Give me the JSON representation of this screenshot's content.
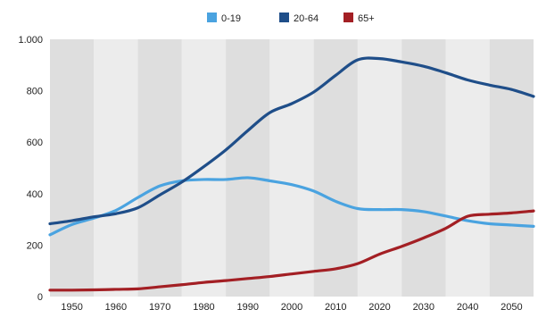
{
  "chart_data": {
    "type": "line",
    "title": "",
    "xlabel": "",
    "ylabel": "",
    "xlim": [
      1945,
      2055
    ],
    "ylim": [
      0,
      1000
    ],
    "x_ticks": [
      1950,
      1960,
      1970,
      1980,
      1990,
      2000,
      2010,
      2020,
      2030,
      2040,
      2050
    ],
    "x_tick_labels": [
      "1950",
      "1960",
      "1970",
      "1980",
      "1990",
      "2000",
      "2010",
      "2020",
      "2030",
      "2040",
      "2050"
    ],
    "y_ticks": [
      0,
      200,
      400,
      600,
      800,
      1000
    ],
    "y_tick_labels": [
      "0",
      "200",
      "400",
      "600",
      "800",
      "1.000"
    ],
    "grid": "vertical alternating bands",
    "legend_position": "top-center",
    "series": [
      {
        "name": "0-19",
        "color": "#4aa3e0",
        "x": [
          1945,
          1950,
          1955,
          1960,
          1965,
          1970,
          1975,
          1980,
          1985,
          1990,
          1995,
          2000,
          2005,
          2010,
          2015,
          2020,
          2025,
          2030,
          2035,
          2040,
          2045,
          2050,
          2055
        ],
        "values": [
          240,
          280,
          305,
          335,
          385,
          430,
          450,
          455,
          455,
          462,
          450,
          435,
          410,
          370,
          342,
          338,
          338,
          330,
          313,
          295,
          283,
          278,
          273
        ]
      },
      {
        "name": "20-64",
        "color": "#1f4e89",
        "x": [
          1945,
          1950,
          1955,
          1960,
          1965,
          1970,
          1975,
          1980,
          1985,
          1990,
          1995,
          2000,
          2005,
          2010,
          2015,
          2020,
          2025,
          2030,
          2035,
          2040,
          2045,
          2050,
          2055
        ],
        "values": [
          283,
          295,
          310,
          322,
          345,
          395,
          445,
          505,
          570,
          645,
          715,
          750,
          795,
          860,
          920,
          925,
          912,
          895,
          870,
          842,
          822,
          805,
          778
        ]
      },
      {
        "name": "65+",
        "color": "#a31f24",
        "x": [
          1945,
          1950,
          1955,
          1960,
          1965,
          1970,
          1975,
          1980,
          1985,
          1990,
          1995,
          2000,
          2005,
          2010,
          2015,
          2020,
          2025,
          2030,
          2035,
          2040,
          2045,
          2050,
          2055
        ],
        "values": [
          25,
          25,
          26,
          28,
          30,
          38,
          46,
          55,
          62,
          70,
          78,
          88,
          98,
          108,
          128,
          165,
          195,
          228,
          265,
          312,
          320,
          325,
          333
        ]
      }
    ]
  },
  "colors": {
    "band_light": "#ececec",
    "band_dark": "#dedede",
    "tick_text": "#222222"
  }
}
